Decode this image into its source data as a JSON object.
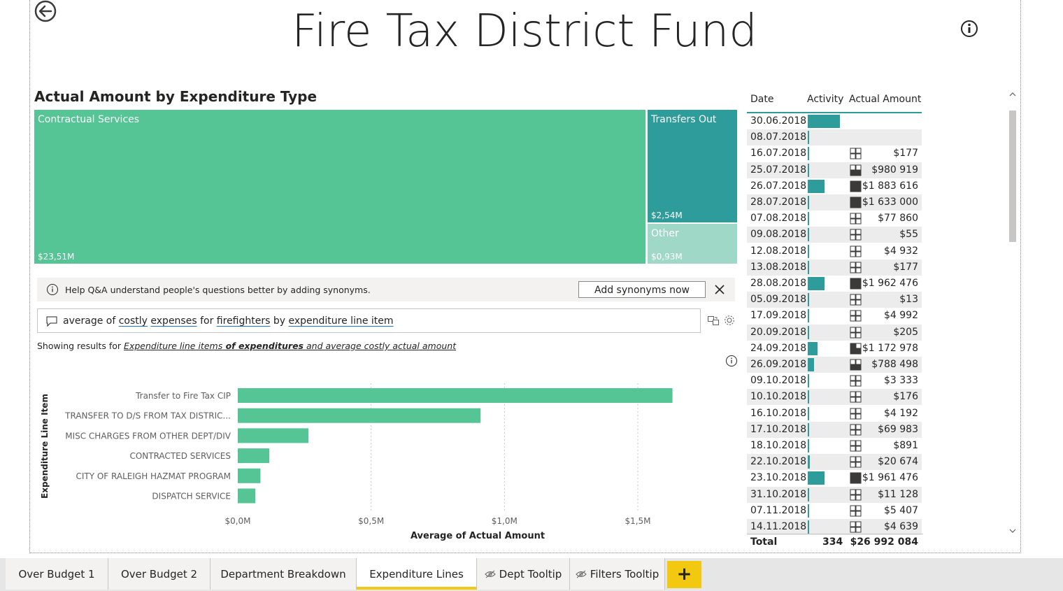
{
  "title": "Fire Tax District Fund",
  "treemap": {
    "title": "Actual Amount by Expenditure Type",
    "tiles": [
      {
        "label": "Contractual Services",
        "value": "$23,51M",
        "color": "#56c596"
      },
      {
        "label": "Transfers Out",
        "value": "$2,54M",
        "color": "#2d9c9a"
      },
      {
        "label": "Other",
        "value": "$0,93M",
        "color": "#a0d8c8"
      }
    ]
  },
  "qa": {
    "banner_text": "Help Q&A understand people's questions better by adding synonyms.",
    "add_synonyms_label": "Add synonyms now",
    "query_parts": [
      {
        "t": "average of ",
        "u": false
      },
      {
        "t": "costly",
        "u": true
      },
      {
        "t": " ",
        "u": false
      },
      {
        "t": "expenses",
        "u": true
      },
      {
        "t": " for ",
        "u": false
      },
      {
        "t": "firefighters",
        "u": true
      },
      {
        "t": " by ",
        "u": false
      },
      {
        "t": "expenditure line item",
        "u": true
      }
    ],
    "showing_prefix": "Showing results for ",
    "showing_parts": [
      {
        "t": "Expenditure line items",
        "b": false
      },
      {
        "t": " of expenditures",
        "b": true
      },
      {
        "t": " and average costly actual amount",
        "b": false
      }
    ]
  },
  "chart_data": {
    "type": "bar",
    "orientation": "horizontal",
    "categories": [
      "Transfer to Fire Tax CIP",
      "TRANSFER TO D/S FROM TAX DISTRIC...",
      "MISC CHARGES FROM OTHER DEPT/DIV",
      "CONTRACTED SERVICES",
      "CITY OF RALEIGH HAZMAT PROGRAM",
      "DISPATCH SERVICE"
    ],
    "values": [
      1.63,
      0.91,
      0.265,
      0.118,
      0.085,
      0.066
    ],
    "xlabel": "Average of Actual Amount",
    "ylabel": "Expenditure Line Item",
    "xticks": [
      "$0,0M",
      "$0,5M",
      "$1,0M",
      "$1,5M"
    ],
    "xtick_values": [
      0,
      0.5,
      1.0,
      1.5
    ],
    "xlim": [
      0,
      1.7
    ],
    "color": "#56c596",
    "grid": true
  },
  "table": {
    "headers": [
      "Date",
      "Activity",
      "Actual Amount"
    ],
    "rows": [
      {
        "date": "30.06.2018",
        "activity": 0.8,
        "kpi": "",
        "amount": ""
      },
      {
        "date": "08.07.2018",
        "activity": 0.04,
        "kpi": "",
        "amount": ""
      },
      {
        "date": "16.07.2018",
        "activity": 0.04,
        "kpi": "empty",
        "amount": "$177"
      },
      {
        "date": "25.07.2018",
        "activity": 0.04,
        "kpi": "half",
        "amount": "$980 919"
      },
      {
        "date": "26.07.2018",
        "activity": 0.42,
        "kpi": "full",
        "amount": "$1 883 616"
      },
      {
        "date": "28.07.2018",
        "activity": 0.04,
        "kpi": "full",
        "amount": "$1 633 000"
      },
      {
        "date": "07.08.2018",
        "activity": 0.04,
        "kpi": "empty",
        "amount": "$77 860"
      },
      {
        "date": "09.08.2018",
        "activity": 0.04,
        "kpi": "empty",
        "amount": "$55"
      },
      {
        "date": "12.08.2018",
        "activity": 0.04,
        "kpi": "empty",
        "amount": "$4 932"
      },
      {
        "date": "13.08.2018",
        "activity": 0.04,
        "kpi": "empty",
        "amount": "$177"
      },
      {
        "date": "28.08.2018",
        "activity": 0.42,
        "kpi": "full",
        "amount": "$1 962 476"
      },
      {
        "date": "05.09.2018",
        "activity": 0.04,
        "kpi": "empty",
        "amount": "$13"
      },
      {
        "date": "17.09.2018",
        "activity": 0.04,
        "kpi": "empty",
        "amount": "$4 992"
      },
      {
        "date": "20.09.2018",
        "activity": 0.04,
        "kpi": "empty",
        "amount": "$205"
      },
      {
        "date": "24.09.2018",
        "activity": 0.24,
        "kpi": "quarter",
        "amount": "$1 172 978"
      },
      {
        "date": "26.09.2018",
        "activity": 0.16,
        "kpi": "half",
        "amount": "$788 498"
      },
      {
        "date": "09.10.2018",
        "activity": 0.04,
        "kpi": "empty",
        "amount": "$3 333"
      },
      {
        "date": "10.10.2018",
        "activity": 0.04,
        "kpi": "empty",
        "amount": "$176"
      },
      {
        "date": "16.10.2018",
        "activity": 0.04,
        "kpi": "empty",
        "amount": "$4 192"
      },
      {
        "date": "17.10.2018",
        "activity": 0.04,
        "kpi": "empty",
        "amount": "$69 983"
      },
      {
        "date": "18.10.2018",
        "activity": 0.04,
        "kpi": "empty",
        "amount": "$891"
      },
      {
        "date": "22.10.2018",
        "activity": 0.06,
        "kpi": "empty",
        "amount": "$20 674"
      },
      {
        "date": "23.10.2018",
        "activity": 0.42,
        "kpi": "full",
        "amount": "$1 961 476"
      },
      {
        "date": "31.10.2018",
        "activity": 0.04,
        "kpi": "empty",
        "amount": "$11 128"
      },
      {
        "date": "07.11.2018",
        "activity": 0.04,
        "kpi": "empty",
        "amount": "$5 407"
      },
      {
        "date": "14.11.2018",
        "activity": 0.04,
        "kpi": "empty",
        "amount": "$4 639"
      }
    ],
    "total": {
      "label": "Total",
      "activity": "334",
      "amount": "$26 992 084"
    }
  },
  "tabs": [
    {
      "label": "Over Budget 1",
      "active": false,
      "hidden": false
    },
    {
      "label": "Over Budget 2",
      "active": false,
      "hidden": false
    },
    {
      "label": "Department Breakdown",
      "active": false,
      "hidden": false
    },
    {
      "label": "Expenditure Lines",
      "active": true,
      "hidden": false
    },
    {
      "label": "Dept Tooltip",
      "active": false,
      "hidden": true
    },
    {
      "label": "Filters Tooltip",
      "active": false,
      "hidden": true
    }
  ],
  "add_tab_label": "+",
  "colors": {
    "teal": "#2d9c9a",
    "green": "#56c596",
    "accent": "#f2c811"
  }
}
